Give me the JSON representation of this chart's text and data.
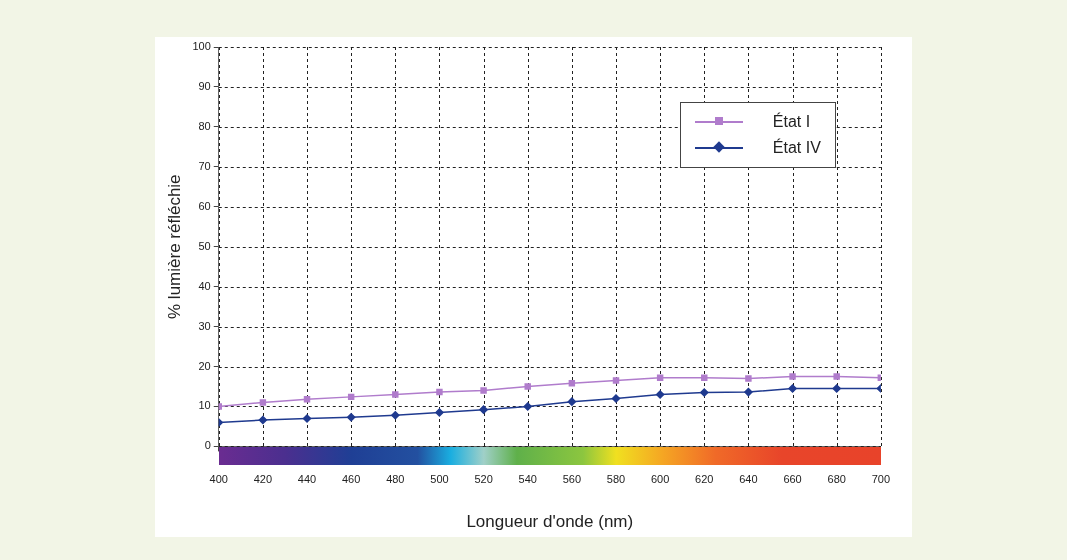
{
  "chart_data": {
    "type": "line",
    "xlabel": "Longueur d'onde (nm)",
    "ylabel": "% lumière réfléchie",
    "x": [
      400,
      420,
      440,
      460,
      480,
      500,
      520,
      540,
      560,
      580,
      600,
      620,
      640,
      660,
      680,
      700
    ],
    "series": [
      {
        "name": "État I",
        "color": "#b07ccc",
        "marker": "square",
        "values": [
          10,
          11,
          11.8,
          12.4,
          13,
          13.6,
          14,
          15,
          15.8,
          16.5,
          17.2,
          17.2,
          17,
          17.5,
          17.5,
          17.2
        ]
      },
      {
        "name": "État IV",
        "color": "#1f3a8f",
        "marker": "diamond",
        "values": [
          6,
          6.6,
          7,
          7.3,
          7.8,
          8.5,
          9.2,
          10,
          11.2,
          12,
          13,
          13.5,
          13.6,
          14.5,
          14.5,
          14.5
        ]
      }
    ],
    "xlim": [
      400,
      700
    ],
    "xticks": [
      400,
      420,
      440,
      460,
      480,
      500,
      520,
      540,
      560,
      580,
      600,
      620,
      640,
      660,
      680,
      700
    ],
    "ylim": [
      0,
      100
    ],
    "yticks": [
      0,
      10,
      20,
      30,
      40,
      50,
      60,
      70,
      80,
      90,
      100
    ],
    "grid": true,
    "legend": "top right"
  }
}
